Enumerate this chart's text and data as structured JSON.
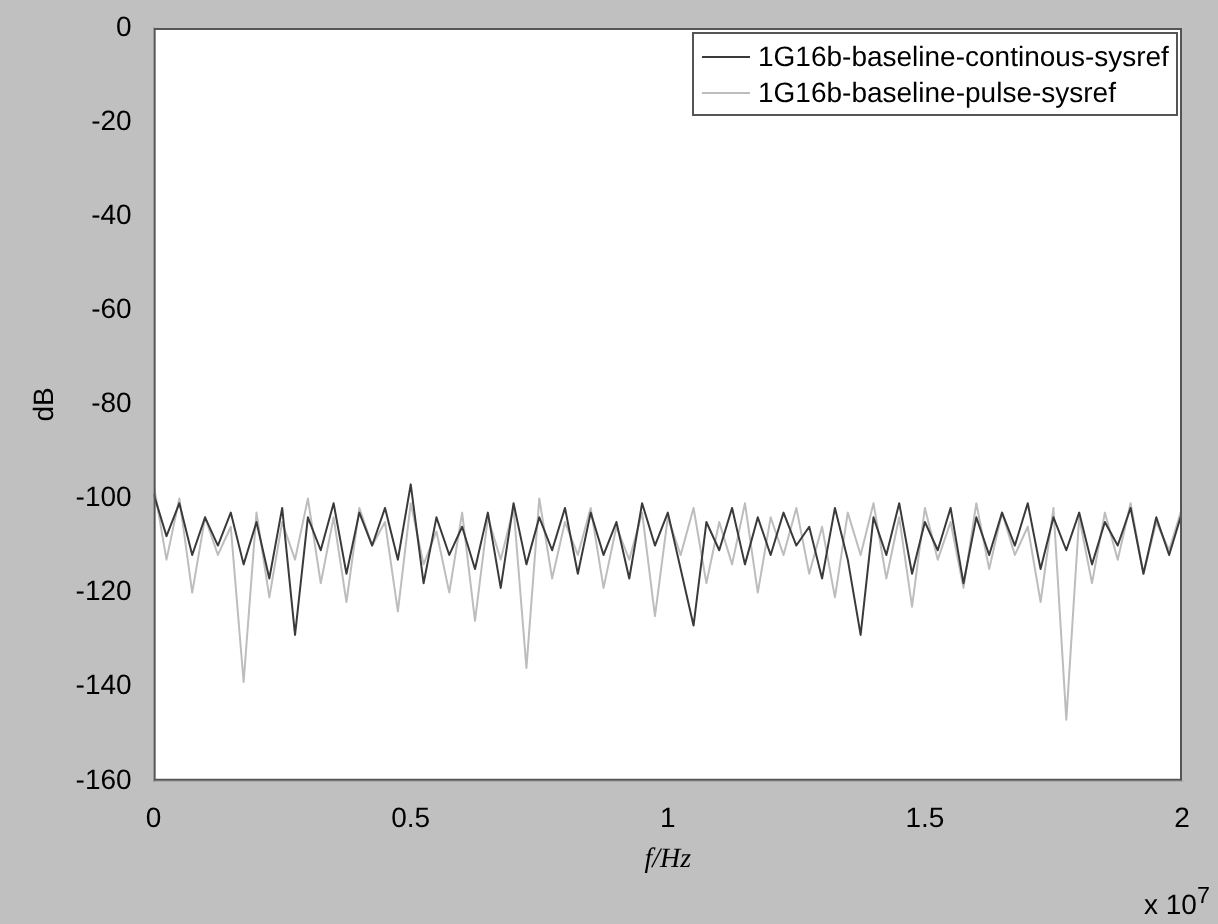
{
  "chart_data": {
    "type": "line",
    "xlabel": "f/Hz",
    "ylabel": "dB",
    "annotations": [
      "x 10$^{7}$"
    ],
    "x": [
      0,
      0.025,
      0.05,
      0.075,
      0.1,
      0.125,
      0.15,
      0.175,
      0.2,
      0.225,
      0.25,
      0.275,
      0.3,
      0.325,
      0.35,
      0.375,
      0.4,
      0.425,
      0.45,
      0.475,
      0.5,
      0.525,
      0.55,
      0.575,
      0.6,
      0.625,
      0.65,
      0.675,
      0.7,
      0.725,
      0.75,
      0.775,
      0.8,
      0.825,
      0.85,
      0.875,
      0.9,
      0.925,
      0.95,
      0.975,
      1,
      1.025,
      1.05,
      1.075,
      1.1,
      1.125,
      1.15,
      1.175,
      1.2,
      1.225,
      1.25,
      1.275,
      1.3,
      1.325,
      1.35,
      1.375,
      1.4,
      1.425,
      1.45,
      1.475,
      1.5,
      1.525,
      1.55,
      1.575,
      1.6,
      1.625,
      1.65,
      1.675,
      1.7,
      1.725,
      1.75,
      1.775,
      1.8,
      1.825,
      1.85,
      1.875,
      1.9,
      1.925,
      1.95,
      1.975,
      2
    ],
    "series": [
      {
        "name": "1G16b-baseline-continous-sysref",
        "color": "#3a3a3a",
        "values": [
          -99,
          -108,
          -101,
          -112,
          -104,
          -110,
          -103,
          -114,
          -105,
          -117,
          -102,
          -129,
          -104,
          -111,
          -101,
          -116,
          -103,
          -110,
          -102,
          -113,
          -97,
          -118,
          -104,
          -112,
          -106,
          -115,
          -103,
          -119,
          -101,
          -114,
          -104,
          -111,
          -102,
          -116,
          -103,
          -112,
          -105,
          -117,
          -101,
          -110,
          -103,
          -115,
          -127,
          -105,
          -111,
          -102,
          -114,
          -104,
          -112,
          -103,
          -110,
          -106,
          -117,
          -102,
          -113,
          -129,
          -104,
          -112,
          -101,
          -116,
          -105,
          -111,
          -102,
          -118,
          -104,
          -112,
          -103,
          -110,
          -101,
          -115,
          -104,
          -111,
          -103,
          -114,
          -105,
          -110,
          -102,
          -116,
          -104,
          -112,
          -103
        ]
      },
      {
        "name": "1G16b-baseline-pulse-sysref",
        "color": "#bdbdbd",
        "values": [
          -97,
          -113,
          -100,
          -120,
          -104,
          -112,
          -106,
          -139,
          -103,
          -121,
          -105,
          -113,
          -100,
          -118,
          -104,
          -122,
          -102,
          -110,
          -105,
          -124,
          -101,
          -114,
          -107,
          -120,
          -103,
          -126,
          -104,
          -113,
          -102,
          -136,
          -100,
          -117,
          -105,
          -112,
          -102,
          -119,
          -106,
          -113,
          -103,
          -125,
          -104,
          -112,
          -102,
          -118,
          -105,
          -114,
          -101,
          -120,
          -104,
          -112,
          -102,
          -116,
          -106,
          -121,
          -103,
          -112,
          -101,
          -117,
          -104,
          -123,
          -102,
          -113,
          -105,
          -119,
          -101,
          -115,
          -103,
          -112,
          -106,
          -122,
          -102,
          -147,
          -104,
          -118,
          -103,
          -113,
          -101,
          -116,
          -105,
          -111,
          -102
        ]
      }
    ],
    "xlim": [
      0,
      2
    ],
    "xticks": [
      0,
      0.5,
      1,
      1.5,
      2
    ],
    "ylim": [
      -160,
      0
    ],
    "yticks": [
      -160,
      -140,
      -120,
      -100,
      -80,
      -60,
      -40,
      -20,
      0
    ],
    "grid": false,
    "legend": "top right",
    "marker": "none",
    "line_style": "solid"
  }
}
